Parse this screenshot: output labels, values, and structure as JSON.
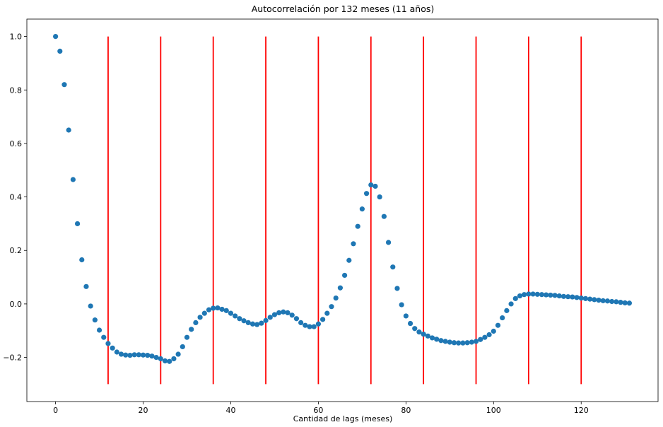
{
  "chart_data": {
    "type": "scatter",
    "title": "Autocorrelación por 132 meses (11 años)",
    "x_label": "Cantidad de lags (meses)",
    "color": "#1f77b4",
    "x": [
      0,
      1,
      2,
      3,
      4,
      5,
      6,
      7,
      8,
      9,
      10,
      11,
      12,
      13,
      14,
      15,
      16,
      17,
      18,
      19,
      20,
      21,
      22,
      23,
      24,
      25,
      26,
      27,
      28,
      29,
      30,
      31,
      32,
      33,
      34,
      35,
      36,
      37,
      38,
      39,
      40,
      41,
      42,
      43,
      44,
      45,
      46,
      47,
      48,
      49,
      50,
      51,
      52,
      53,
      54,
      55,
      56,
      57,
      58,
      59,
      60,
      61,
      62,
      63,
      64,
      65,
      66,
      67,
      68,
      69,
      70,
      71,
      72,
      73,
      74,
      75,
      76,
      77,
      78,
      79,
      80,
      81,
      82,
      83,
      84,
      85,
      86,
      87,
      88,
      89,
      90,
      91,
      92,
      93,
      94,
      95,
      96,
      97,
      98,
      99,
      100,
      101,
      102,
      103,
      104,
      105,
      106,
      107,
      108,
      109,
      110,
      111,
      112,
      113,
      114,
      115,
      116,
      117,
      118,
      119,
      120,
      121,
      122,
      123,
      124,
      125,
      126,
      127,
      128,
      129,
      130,
      131
    ],
    "values": [
      1.0,
      0.945,
      0.82,
      0.65,
      0.465,
      0.3,
      0.165,
      0.065,
      -0.008,
      -0.06,
      -0.098,
      -0.125,
      -0.148,
      -0.165,
      -0.18,
      -0.188,
      -0.191,
      -0.192,
      -0.19,
      -0.19,
      -0.191,
      -0.192,
      -0.195,
      -0.2,
      -0.205,
      -0.213,
      -0.215,
      -0.205,
      -0.188,
      -0.16,
      -0.125,
      -0.095,
      -0.07,
      -0.05,
      -0.035,
      -0.022,
      -0.016,
      -0.015,
      -0.02,
      -0.025,
      -0.035,
      -0.045,
      -0.055,
      -0.063,
      -0.07,
      -0.075,
      -0.077,
      -0.072,
      -0.062,
      -0.05,
      -0.04,
      -0.033,
      -0.03,
      -0.033,
      -0.042,
      -0.055,
      -0.07,
      -0.08,
      -0.085,
      -0.085,
      -0.075,
      -0.058,
      -0.035,
      -0.01,
      0.022,
      0.06,
      0.107,
      0.163,
      0.225,
      0.29,
      0.355,
      0.413,
      0.445,
      0.44,
      0.4,
      0.327,
      0.23,
      0.138,
      0.058,
      -0.003,
      -0.045,
      -0.073,
      -0.092,
      -0.105,
      -0.113,
      -0.12,
      -0.127,
      -0.132,
      -0.137,
      -0.14,
      -0.143,
      -0.145,
      -0.146,
      -0.146,
      -0.145,
      -0.143,
      -0.14,
      -0.133,
      -0.125,
      -0.115,
      -0.102,
      -0.08,
      -0.052,
      -0.025,
      0.0,
      0.02,
      0.03,
      0.035,
      0.037,
      0.037,
      0.036,
      0.035,
      0.034,
      0.033,
      0.032,
      0.03,
      0.028,
      0.027,
      0.026,
      0.024,
      0.022,
      0.02,
      0.018,
      0.016,
      0.014,
      0.012,
      0.011,
      0.009,
      0.008,
      0.006,
      0.004,
      0.003
    ],
    "vlines": {
      "x": [
        12,
        24,
        36,
        48,
        60,
        72,
        84,
        96,
        108,
        120
      ],
      "ymin": -0.3,
      "ymax": 1.0,
      "color": "#ff0000"
    },
    "xlim": [
      -6.55,
      137.55
    ],
    "ylim": [
      -0.365,
      1.065
    ],
    "xticks": [
      0,
      20,
      40,
      60,
      80,
      100,
      120
    ],
    "yticks": [
      {
        "value": -0.2,
        "label": "−0.2"
      },
      {
        "value": 0,
        "label": "0.0"
      },
      0.2,
      0.4,
      0.6,
      0.8,
      {
        "value": 1,
        "label": "1.0"
      }
    ]
  }
}
